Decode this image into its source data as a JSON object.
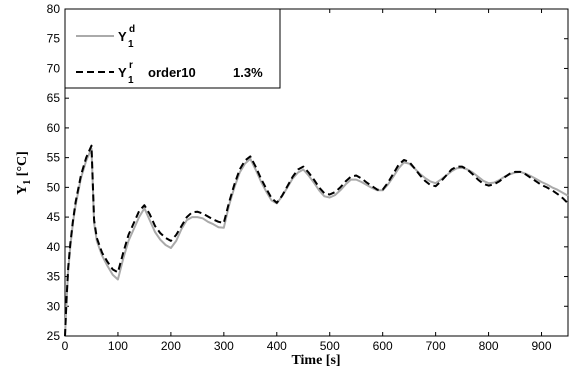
{
  "chart_data": {
    "type": "line",
    "xlabel": "Time [s]",
    "ylabel": {
      "main": "Y",
      "sub": "1",
      "unit": " [°C]"
    },
    "xlim": [
      0,
      950
    ],
    "ylim": [
      25,
      80
    ],
    "x_ticks": [
      0,
      100,
      200,
      300,
      400,
      500,
      600,
      700,
      800,
      900
    ],
    "y_ticks": [
      25,
      30,
      35,
      40,
      45,
      50,
      55,
      60,
      65,
      70,
      75,
      80
    ],
    "grid": false,
    "legend": {
      "placement": "top-left",
      "entries": [
        {
          "base": "Y",
          "sup": "d",
          "sub": "1",
          "extra": ""
        },
        {
          "base": "Y",
          "sup": "r",
          "sub": "1",
          "extra": "order10",
          "value": "1.3%"
        }
      ]
    },
    "series": [
      {
        "color": "#aaaaaa",
        "dash": "solid",
        "x": [
          0,
          3,
          6,
          10,
          15,
          20,
          30,
          40,
          50,
          55,
          60,
          70,
          80,
          90,
          100,
          110,
          120,
          130,
          140,
          150,
          160,
          170,
          180,
          190,
          200,
          210,
          220,
          230,
          240,
          250,
          260,
          270,
          280,
          290,
          300,
          310,
          320,
          330,
          340,
          350,
          360,
          370,
          380,
          390,
          400,
          410,
          420,
          430,
          440,
          450,
          460,
          470,
          480,
          490,
          500,
          510,
          520,
          530,
          540,
          550,
          560,
          570,
          580,
          590,
          600,
          610,
          620,
          630,
          640,
          650,
          660,
          670,
          680,
          690,
          700,
          710,
          720,
          730,
          740,
          750,
          760,
          770,
          780,
          790,
          800,
          810,
          820,
          830,
          840,
          850,
          860,
          870,
          880,
          890,
          900,
          910,
          920,
          930,
          940,
          950
        ],
        "y": [
          25,
          31,
          36,
          40,
          44,
          47,
          51.5,
          54.5,
          56.5,
          44,
          41,
          38.5,
          36.8,
          35.3,
          34.5,
          38,
          41,
          43,
          45,
          46.5,
          44.5,
          42.5,
          41.2,
          40.3,
          39.8,
          41,
          43,
          44.5,
          45,
          45,
          44.8,
          44.2,
          43.8,
          43.3,
          43.2,
          47,
          50,
          52.5,
          54,
          54.8,
          53,
          51,
          49.3,
          47.8,
          47.3,
          48.5,
          50,
          51.5,
          52.5,
          53,
          52,
          50.8,
          49.5,
          48.5,
          48.3,
          48.7,
          49.5,
          50.5,
          51.3,
          51.3,
          50.9,
          50.4,
          49.9,
          49.5,
          49.5,
          50.5,
          51.8,
          53.2,
          54.2,
          54,
          53.2,
          52.3,
          51.6,
          51,
          50.7,
          51.3,
          52,
          52.7,
          53.2,
          53.3,
          53,
          52.5,
          51.8,
          51.1,
          50.7,
          50.8,
          51.2,
          51.8,
          52.2,
          52.5,
          52.6,
          52.3,
          51.9,
          51.4,
          50.9,
          50.5,
          50,
          49.6,
          49.1,
          48.6
        ]
      },
      {
        "color": "#000000",
        "dash": "dashed",
        "x": [
          0,
          3,
          6,
          10,
          15,
          20,
          30,
          40,
          50,
          55,
          60,
          70,
          80,
          90,
          100,
          110,
          120,
          130,
          140,
          150,
          160,
          170,
          180,
          190,
          200,
          210,
          220,
          230,
          240,
          250,
          260,
          270,
          280,
          290,
          300,
          310,
          320,
          330,
          340,
          350,
          360,
          370,
          380,
          390,
          400,
          410,
          420,
          430,
          440,
          450,
          460,
          470,
          480,
          490,
          500,
          510,
          520,
          530,
          540,
          550,
          560,
          570,
          580,
          590,
          600,
          610,
          620,
          630,
          640,
          650,
          660,
          670,
          680,
          690,
          700,
          710,
          720,
          730,
          740,
          750,
          760,
          770,
          780,
          790,
          800,
          810,
          820,
          830,
          840,
          850,
          860,
          870,
          880,
          890,
          900,
          910,
          920,
          930,
          940,
          950
        ],
        "y": [
          25,
          31.5,
          36.5,
          40.5,
          44.3,
          47.5,
          52,
          55,
          57,
          44.5,
          41.5,
          39,
          37.5,
          36.2,
          35.7,
          39,
          42,
          44,
          46,
          47,
          45.5,
          43.5,
          42.3,
          41.5,
          41,
          42,
          43.5,
          45,
          45.8,
          45.9,
          45.6,
          45.1,
          44.6,
          44.2,
          44,
          47.5,
          50.5,
          53,
          54.5,
          55.2,
          53.5,
          51.5,
          49.8,
          48.2,
          47.4,
          48.6,
          50.2,
          51.8,
          53,
          53.5,
          52.5,
          51.3,
          50,
          49,
          48.8,
          49.2,
          50,
          51,
          51.8,
          52,
          51.5,
          50.8,
          50.2,
          49.6,
          49.6,
          50.8,
          52.3,
          53.8,
          54.6,
          54.3,
          53.2,
          52.1,
          51.1,
          50.4,
          50.2,
          51,
          52,
          53,
          53.5,
          53.5,
          53,
          52.2,
          51.3,
          50.6,
          50.3,
          50.5,
          51,
          51.7,
          52.3,
          52.6,
          52.6,
          52.2,
          51.6,
          51,
          50.4,
          50,
          49.5,
          48.9,
          48.2,
          47.3
        ]
      }
    ]
  }
}
